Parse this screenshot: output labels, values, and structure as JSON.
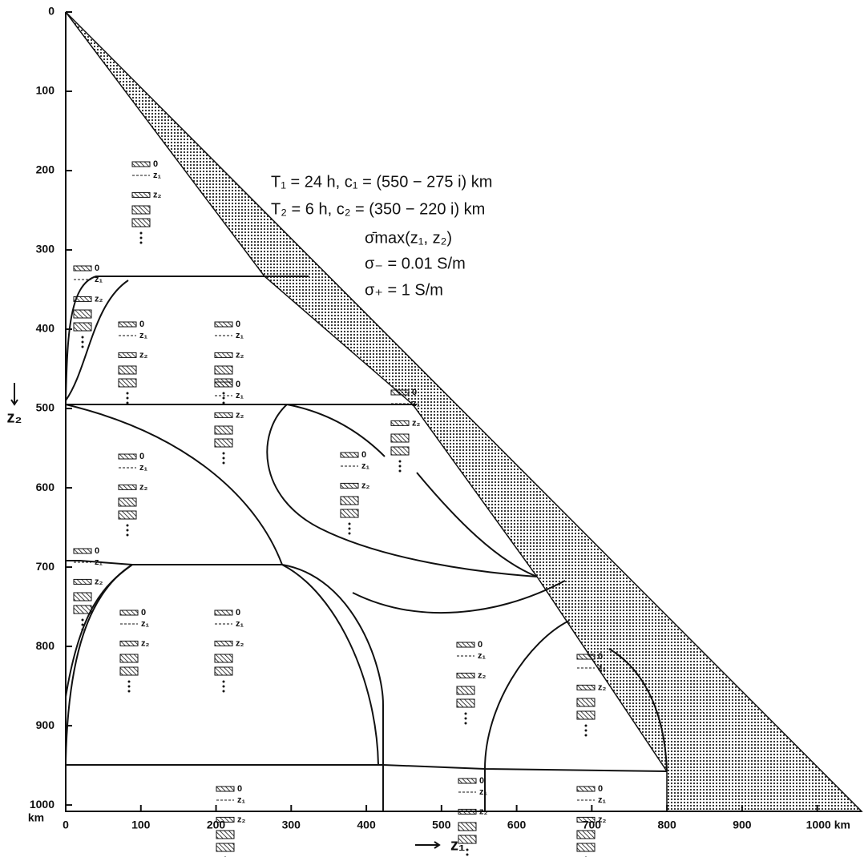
{
  "chart_data": {
    "type": "region-map",
    "xlabel": "z₁",
    "ylabel": "z₂",
    "y_unit": "km",
    "xlim": [
      0,
      1059
    ],
    "ylim": [
      0,
      1008
    ],
    "xticks": [
      0,
      100,
      200,
      300,
      400,
      500,
      600,
      700,
      800,
      900,
      {
        "value": 1000,
        "label": "1000 km"
      }
    ],
    "yticks": [
      0,
      100,
      200,
      300,
      400,
      500,
      600,
      700,
      800,
      900,
      1000
    ],
    "annotations": [
      "T₁ = 24 h,  c₁ = (550 − 275 i) km",
      "T₂ = 6 h,  c₂ = (350 − 220 i) km",
      "σ̄max(z₁, z₂)",
      "σ₋ = 0.01 S/m",
      "σ₊ = 1 S/m"
    ],
    "columns": [
      {
        "labels": [
          "0",
          "z₁",
          "z₂"
        ]
      },
      {
        "labels": [
          "0",
          "z₁",
          "z₂"
        ]
      },
      {
        "labels": [
          "0",
          "z₁",
          "z₂"
        ]
      },
      {
        "labels": [
          "0",
          "z₁",
          "z₂"
        ]
      },
      {
        "labels": [
          "0",
          "z₁",
          "z₂"
        ]
      },
      {
        "labels": [
          "0",
          "z₁",
          "z₂"
        ]
      },
      {
        "labels": [
          "0",
          "z₁",
          "z₂"
        ]
      },
      {
        "labels": [
          "0",
          "z₁",
          "z₂"
        ]
      },
      {
        "labels": [
          "0",
          "z₁",
          "z₂"
        ]
      },
      {
        "labels": [
          "0",
          "z₁",
          "z₂"
        ]
      },
      {
        "labels": [
          "0",
          "z₁",
          "z₂"
        ]
      },
      {
        "labels": [
          "0",
          "z₁",
          "z₂"
        ]
      },
      {
        "labels": [
          "0",
          "z₁",
          "z₂"
        ]
      },
      {
        "labels": [
          "0",
          "z₁",
          "z₂"
        ]
      },
      {
        "labels": [
          "0",
          "z₁",
          "z₂"
        ]
      },
      {
        "labels": [
          "0",
          "z₁",
          "z₂"
        ]
      }
    ]
  }
}
